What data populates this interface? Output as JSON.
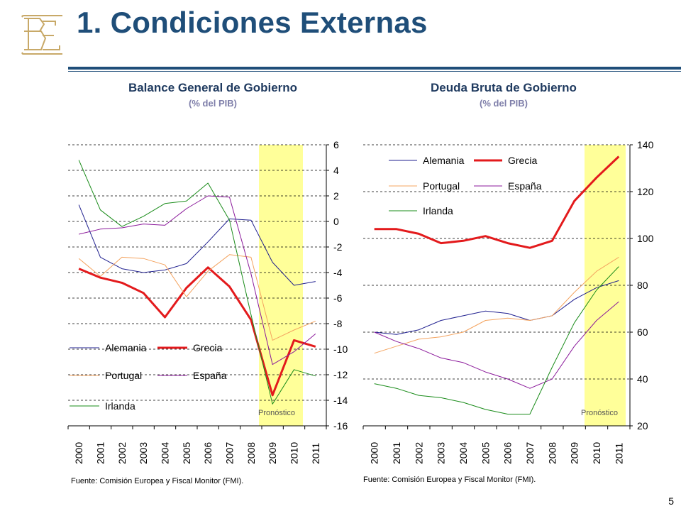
{
  "header": {
    "title": "1. Condiciones Externas",
    "page_number": "5"
  },
  "colors": {
    "brand": "#1f4e79",
    "forecast_band": "#ffff99",
    "alemania": "#1f1f8f",
    "grecia": "#e31a1c",
    "portugal": "#f4a460",
    "espana": "#8b1a9b",
    "irlanda": "#1a8c1a"
  },
  "logo_icon": "bde-monogram-icon",
  "chart_data": [
    {
      "type": "line",
      "title": "Balance General de Gobierno",
      "subtitle": "(% del PIB)",
      "forecast_label": "Pronóstico",
      "forecast_range": [
        "2009",
        "2010"
      ],
      "source": "Fuente: Comisión Europea y Fiscal Monitor (FMI).",
      "categories": [
        "2000",
        "2001",
        "2002",
        "2003",
        "2004",
        "2005",
        "2006",
        "2007",
        "2008",
        "2009",
        "2010",
        "2011"
      ],
      "y_axis_side": "right",
      "ylim": [
        -16,
        6
      ],
      "yticks": [
        6,
        4,
        2,
        0,
        -2,
        -4,
        -6,
        -8,
        -10,
        -12,
        -14,
        -16
      ],
      "grid": "dashed-horizontal",
      "legend_position": "bottom-left",
      "series": [
        {
          "name": "Alemania",
          "color_key": "alemania",
          "width": 1,
          "values": [
            1.3,
            -2.8,
            -3.7,
            -4.0,
            -3.8,
            -3.3,
            -1.6,
            0.2,
            0.1,
            -3.2,
            -5.0,
            -4.7
          ]
        },
        {
          "name": "Grecia",
          "color_key": "grecia",
          "width": 3,
          "values": [
            -3.7,
            -4.4,
            -4.8,
            -5.6,
            -7.5,
            -5.2,
            -3.6,
            -5.1,
            -7.7,
            -13.6,
            -9.3,
            -9.8
          ]
        },
        {
          "name": "Portugal",
          "color_key": "portugal",
          "width": 1,
          "values": [
            -2.9,
            -4.3,
            -2.8,
            -2.9,
            -3.4,
            -5.9,
            -3.9,
            -2.6,
            -2.8,
            -9.3,
            -8.5,
            -7.8
          ]
        },
        {
          "name": "España",
          "color_key": "espana",
          "width": 1,
          "values": [
            -1.0,
            -0.6,
            -0.5,
            -0.2,
            -0.3,
            1.0,
            2.0,
            1.9,
            -4.1,
            -11.2,
            -10.2,
            -8.8
          ]
        },
        {
          "name": "Irlanda",
          "color_key": "irlanda",
          "width": 1,
          "values": [
            4.8,
            0.9,
            -0.4,
            0.4,
            1.4,
            1.6,
            3.0,
            0.1,
            -7.3,
            -14.3,
            -11.6,
            -12.1
          ]
        }
      ]
    },
    {
      "type": "line",
      "title": "Deuda Bruta de Gobierno",
      "subtitle": "(% del PIB)",
      "forecast_label": "Pronóstico",
      "forecast_range": [
        "2010",
        "2011"
      ],
      "source": "Fuente: Comisión Europea y Fiscal Monitor (FMI).",
      "categories": [
        "2000",
        "2001",
        "2002",
        "2003",
        "2004",
        "2005",
        "2006",
        "2007",
        "2008",
        "2009",
        "2010",
        "2011"
      ],
      "y_axis_side": "right",
      "ylim": [
        20,
        140
      ],
      "yticks": [
        140,
        120,
        100,
        80,
        60,
        40,
        20
      ],
      "grid": "dashed-horizontal",
      "legend_position": "top-left",
      "series": [
        {
          "name": "Alemania",
          "color_key": "alemania",
          "width": 1,
          "values": [
            60,
            59,
            61,
            65,
            67,
            69,
            68,
            65,
            67,
            74,
            79,
            82
          ]
        },
        {
          "name": "Grecia",
          "color_key": "grecia",
          "width": 3,
          "values": [
            104,
            104,
            102,
            98,
            99,
            101,
            98,
            96,
            99,
            116,
            126,
            135
          ]
        },
        {
          "name": "Portugal",
          "color_key": "portugal",
          "width": 1,
          "values": [
            51,
            54,
            57,
            58,
            60,
            65,
            66,
            65,
            67,
            77,
            86,
            92
          ]
        },
        {
          "name": "España",
          "color_key": "espana",
          "width": 1,
          "values": [
            60,
            56,
            53,
            49,
            47,
            43,
            40,
            36,
            40,
            54,
            65,
            73
          ]
        },
        {
          "name": "Irlanda",
          "color_key": "irlanda",
          "width": 1,
          "values": [
            38,
            36,
            33,
            32,
            30,
            27,
            25,
            25,
            45,
            64,
            78,
            88
          ]
        }
      ]
    }
  ]
}
